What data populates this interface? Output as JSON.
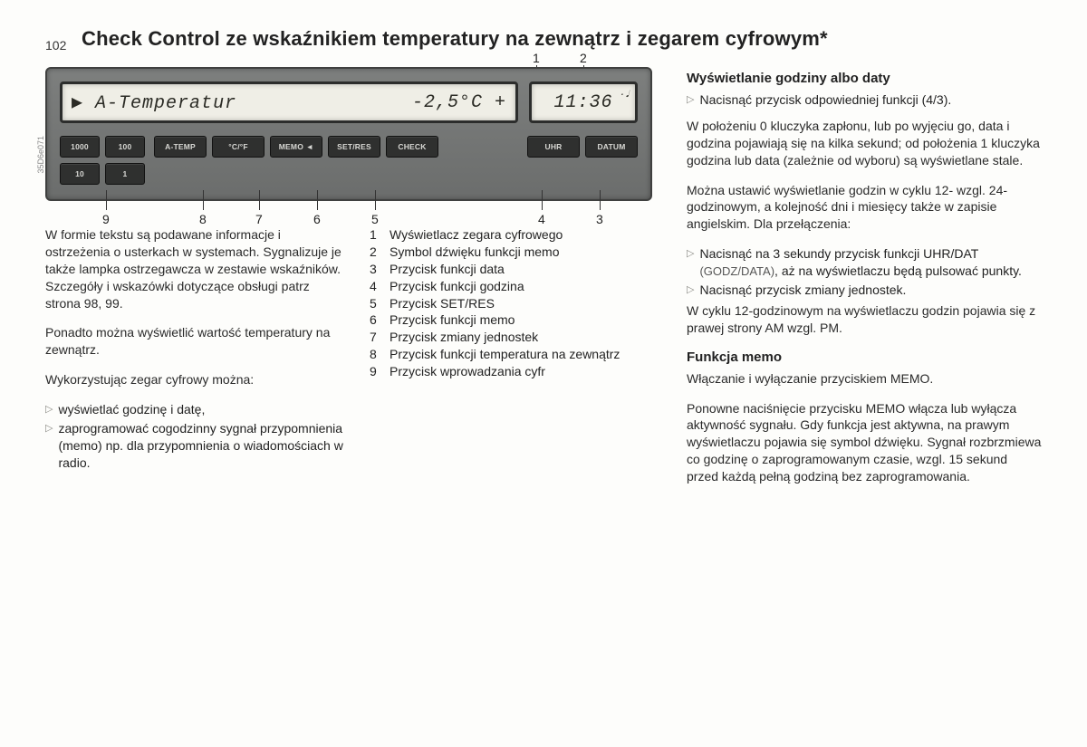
{
  "page_number": "102",
  "title": "Check Control ze wskaźnikiem temperatury na zewnątrz i zegarem cyfrowym*",
  "device": {
    "lcd_main_left": "▶ A-Temperatur",
    "lcd_main_right": "-2,5°C  +",
    "lcd_clock": "11:36",
    "memo_symbol": "·𝅘𝅥",
    "buttons_nums": [
      "1000",
      "100",
      "10",
      "1"
    ],
    "buttons_mid": [
      "A-TEMP",
      "°C/°F",
      "MEMO ◄",
      "SET/RES",
      "CHECK"
    ],
    "buttons_right": [
      "UHR",
      "DATUM"
    ],
    "callout_top": [
      "1",
      "2"
    ],
    "callout_bottom": [
      "9",
      "8",
      "7",
      "6",
      "5",
      "4",
      "3"
    ],
    "photo_ref": "35D6e071"
  },
  "col_left": {
    "p1": "W formie tekstu są podawane informacje i ostrzeżenia o usterkach w systemach. Sygnalizuje je także lampka ostrzegawcza w zestawie wskaźników. Szczegóły i wskazówki dotyczące obsługi patrz strona 98, 99.",
    "p2": "Ponadto można wyświetlić wartość temperatury na zewnątrz.",
    "p3": "Wykorzystując zegar cyfrowy można:",
    "b1": "wyświetlać godzinę i datę,",
    "b2": "zaprogramować cogodzinny sygnał przypomnienia (memo) np. dla przypomnienia o wiadomościach w radio."
  },
  "col_mid": {
    "legend": [
      {
        "n": "1",
        "t": "Wyświetlacz zegara cyfrowego"
      },
      {
        "n": "2",
        "t": "Symbol dźwięku funkcji memo"
      },
      {
        "n": "3",
        "t": "Przycisk funkcji data"
      },
      {
        "n": "4",
        "t": "Przycisk funkcji godzina"
      },
      {
        "n": "5",
        "t": "Przycisk SET/RES"
      },
      {
        "n": "6",
        "t": "Przycisk funkcji memo"
      },
      {
        "n": "7",
        "t": "Przycisk zmiany jednostek"
      },
      {
        "n": "8",
        "t": "Przycisk funkcji temperatura na zewnątrz"
      },
      {
        "n": "9",
        "t": "Przycisk wprowadzania cyfr"
      }
    ]
  },
  "col_right": {
    "h1": "Wyświetlanie godziny albo daty",
    "b1": "Nacisnąć przycisk odpowiedniej funkcji (4/3).",
    "p1": "W położeniu 0 kluczyka zapłonu, lub po wyjęciu go, data i godzina pojawiają się na kilka sekund; od położenia 1 kluczyka godzina lub data (zależnie od wyboru) są wyświetlane stale.",
    "p2": "Można ustawić wyświetlanie godzin w cyklu 12- wzgl. 24-godzinowym, a kolejność dni i miesięcy także w zapisie angielskim. Dla przełączenia:",
    "b2a": "Nacisnąć na 3 sekundy przycisk funkcji UHR/DAT ",
    "b2a_note": "(GODZ/DATA)",
    "b2a_tail": ", aż na wyświetlaczu będą pulsować punkty.",
    "b2b": "Nacisnąć przycisk zmiany jednostek.",
    "p3": "W cyklu 12-godzinowym na wyświetlaczu godzin pojawia się z prawej strony AM wzgl. PM.",
    "h2": "Funkcja memo",
    "p4": "Włączanie i wyłączanie przyciskiem MEMO.",
    "p5": "Ponowne naciśnięcie przycisku MEMO włącza lub wyłącza aktywność sygnału. Gdy funkcja jest aktywna, na prawym wyświetlaczu pojawia się symbol dźwięku. Sygnał rozbrzmiewa co godzinę o zaprogramowanym czasie, wzgl. 15 sekund przed każdą pełną godziną bez zaprogramowania."
  }
}
